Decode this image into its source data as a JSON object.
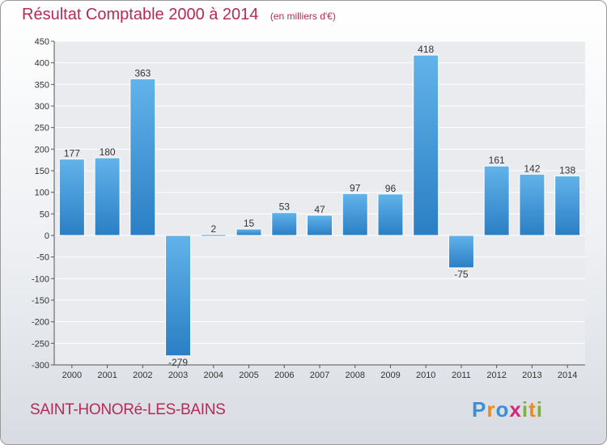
{
  "title": "Résultat Comptable 2000 à 2014",
  "unit": "(en milliers d'€)",
  "commune": "SAINT-HONORé-LES-BAINS",
  "brand": {
    "letters": [
      "P",
      "r",
      "o",
      "x",
      "i",
      "t",
      "i"
    ],
    "colors": [
      "#3a8fd6",
      "#f08a1c",
      "#3a8fd6",
      "#d4267a",
      "#7ab52f",
      "#f08a1c",
      "#7ab52f"
    ]
  },
  "colors": {
    "bar_top": "#62b3ea",
    "bar_bottom": "#2a7fc4",
    "title": "#b52a57",
    "axis": "#555555",
    "grid": "#ffffff"
  },
  "chart_data": {
    "type": "bar",
    "title": "Résultat Comptable 2000 à 2014",
    "ylabel": "en milliers d'€",
    "categories": [
      "2000",
      "2001",
      "2002",
      "2003",
      "2004",
      "2005",
      "2006",
      "2007",
      "2008",
      "2009",
      "2010",
      "2011",
      "2012",
      "2013",
      "2014"
    ],
    "values": [
      177,
      180,
      363,
      -279,
      2,
      15,
      53,
      47,
      97,
      96,
      418,
      -75,
      161,
      142,
      138
    ],
    "ylim": [
      -300,
      450
    ],
    "yticks": [
      450,
      400,
      350,
      300,
      250,
      200,
      150,
      100,
      50,
      0,
      -50,
      -100,
      -150,
      -200,
      -250,
      -300
    ]
  }
}
